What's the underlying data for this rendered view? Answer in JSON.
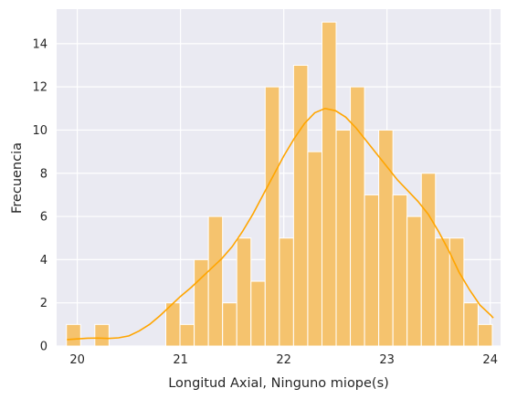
{
  "chart_data": {
    "type": "histogram",
    "title": "",
    "xlabel": "Longitud Axial, Ninguno miope(s)",
    "ylabel": "Frecuencia",
    "xlim": [
      19.8,
      24.1
    ],
    "ylim": [
      0,
      15.6
    ],
    "x_ticks": [
      20,
      21,
      22,
      23,
      24
    ],
    "y_ticks": [
      0,
      2,
      4,
      6,
      8,
      10,
      12,
      14
    ],
    "grid": true,
    "legend": "none",
    "bin_width": 0.1375,
    "bins": [
      {
        "start": 19.895,
        "count": 1
      },
      {
        "start": 20.0325,
        "count": 0
      },
      {
        "start": 20.17,
        "count": 1
      },
      {
        "start": 20.3075,
        "count": 0
      },
      {
        "start": 20.445,
        "count": 0
      },
      {
        "start": 20.5825,
        "count": 0
      },
      {
        "start": 20.72,
        "count": 0
      },
      {
        "start": 20.8575,
        "count": 2
      },
      {
        "start": 20.995,
        "count": 1
      },
      {
        "start": 21.1325,
        "count": 4
      },
      {
        "start": 21.27,
        "count": 6
      },
      {
        "start": 21.4075,
        "count": 2
      },
      {
        "start": 21.545,
        "count": 5
      },
      {
        "start": 21.6825,
        "count": 3
      },
      {
        "start": 21.82,
        "count": 12
      },
      {
        "start": 21.9575,
        "count": 5
      },
      {
        "start": 22.095,
        "count": 13
      },
      {
        "start": 22.2325,
        "count": 9
      },
      {
        "start": 22.37,
        "count": 15
      },
      {
        "start": 22.5075,
        "count": 10
      },
      {
        "start": 22.645,
        "count": 12
      },
      {
        "start": 22.7825,
        "count": 7
      },
      {
        "start": 22.92,
        "count": 10
      },
      {
        "start": 23.0575,
        "count": 7
      },
      {
        "start": 23.195,
        "count": 6
      },
      {
        "start": 23.3325,
        "count": 8
      },
      {
        "start": 23.47,
        "count": 5
      },
      {
        "start": 23.6075,
        "count": 5
      },
      {
        "start": 23.745,
        "count": 2
      },
      {
        "start": 23.8825,
        "count": 1
      }
    ],
    "kde": {
      "x": [
        19.9,
        20.0,
        20.1,
        20.2,
        20.3,
        20.4,
        20.5,
        20.6,
        20.7,
        20.8,
        20.9,
        21.0,
        21.1,
        21.2,
        21.3,
        21.4,
        21.5,
        21.6,
        21.7,
        21.8,
        21.9,
        22.0,
        22.1,
        22.2,
        22.3,
        22.4,
        22.5,
        22.6,
        22.7,
        22.8,
        22.9,
        23.0,
        23.1,
        23.2,
        23.3,
        23.4,
        23.5,
        23.6,
        23.7,
        23.8,
        23.9,
        24.0,
        24.03
      ],
      "y": [
        0.3,
        0.33,
        0.36,
        0.37,
        0.35,
        0.38,
        0.47,
        0.7,
        1.0,
        1.4,
        1.85,
        2.3,
        2.7,
        3.15,
        3.6,
        4.05,
        4.6,
        5.3,
        6.1,
        7.0,
        7.9,
        8.8,
        9.6,
        10.3,
        10.8,
        11.0,
        10.9,
        10.6,
        10.1,
        9.5,
        8.9,
        8.3,
        7.7,
        7.2,
        6.7,
        6.1,
        5.3,
        4.4,
        3.4,
        2.6,
        1.9,
        1.45,
        1.3
      ]
    },
    "colors": {
      "bar_fill": "#f5c36e",
      "bar_edge": "#ffffff",
      "kde_line": "#ffa500",
      "plot_background": "#eaeaf2",
      "grid": "#ffffff"
    }
  }
}
